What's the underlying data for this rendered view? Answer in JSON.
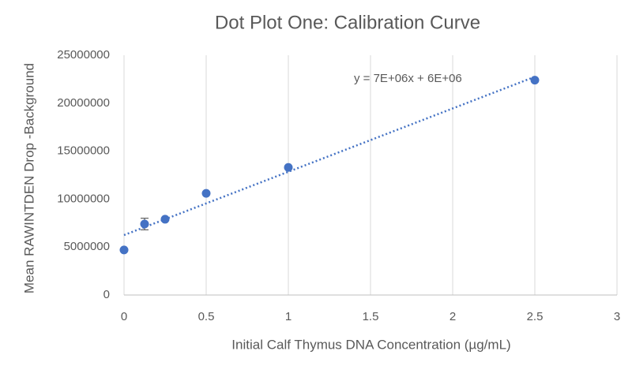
{
  "chart_data": {
    "type": "scatter",
    "title": "Dot Plot One: Calibration Curve",
    "x_label": "Initial Calf Thymus DNA Concentration (µg/mL)",
    "y_label": "Mean RAWINTDEN Drop -Background",
    "x": [
      0,
      0.125,
      0.25,
      0.5,
      1,
      2.5
    ],
    "series": [
      {
        "color": "#4472c4",
        "values": [
          4700000,
          7400000,
          7900000,
          10600000,
          13300000,
          22400000
        ],
        "errors": [
          null,
          600000,
          null,
          null,
          null,
          null
        ]
      }
    ],
    "trendline": {
      "label": "y = 7E+06x + 6E+06",
      "slope": 6600000,
      "intercept": 6250000,
      "color": "#4472c4"
    },
    "xlim": [
      0,
      3
    ],
    "xticks": [
      0,
      0.5,
      1,
      1.5,
      2,
      2.5,
      3
    ],
    "ylim": [
      0,
      25000000
    ],
    "yticks": [
      0,
      5000000,
      10000000,
      15000000,
      20000000,
      25000000
    ],
    "grid": "x"
  }
}
